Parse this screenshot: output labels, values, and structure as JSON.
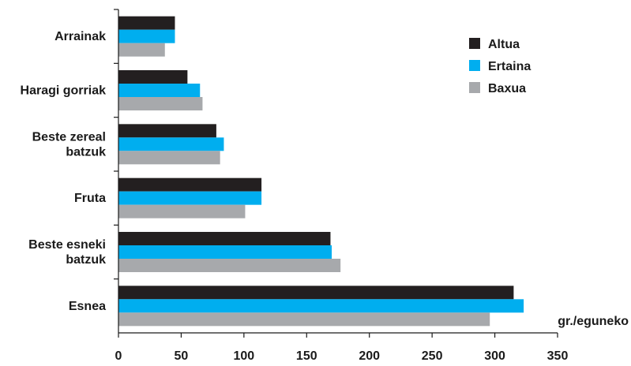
{
  "chart_data": {
    "type": "bar",
    "orientation": "horizontal",
    "categories": [
      [
        "Arrainak"
      ],
      [
        "Haragi gorriak"
      ],
      [
        "Beste zereal",
        "batzuk"
      ],
      [
        "Fruta"
      ],
      [
        "Beste esneki",
        "batzuk"
      ],
      [
        "Esnea"
      ]
    ],
    "series": [
      {
        "name": "Altua",
        "color": "#231f20",
        "values": [
          45,
          55,
          78,
          114,
          169,
          315
        ]
      },
      {
        "name": "Ertaina",
        "color": "#00aeef",
        "values": [
          45,
          65,
          84,
          114,
          170,
          323
        ]
      },
      {
        "name": "Baxua",
        "color": "#a7a9ac",
        "values": [
          37,
          67,
          81,
          101,
          177,
          296
        ]
      }
    ],
    "xticks": [
      0,
      50,
      100,
      150,
      200,
      250,
      300,
      350
    ],
    "xlim": [
      0,
      350
    ],
    "xlabel": "gr./eguneko",
    "legend_position": "top-right",
    "grid": false
  }
}
